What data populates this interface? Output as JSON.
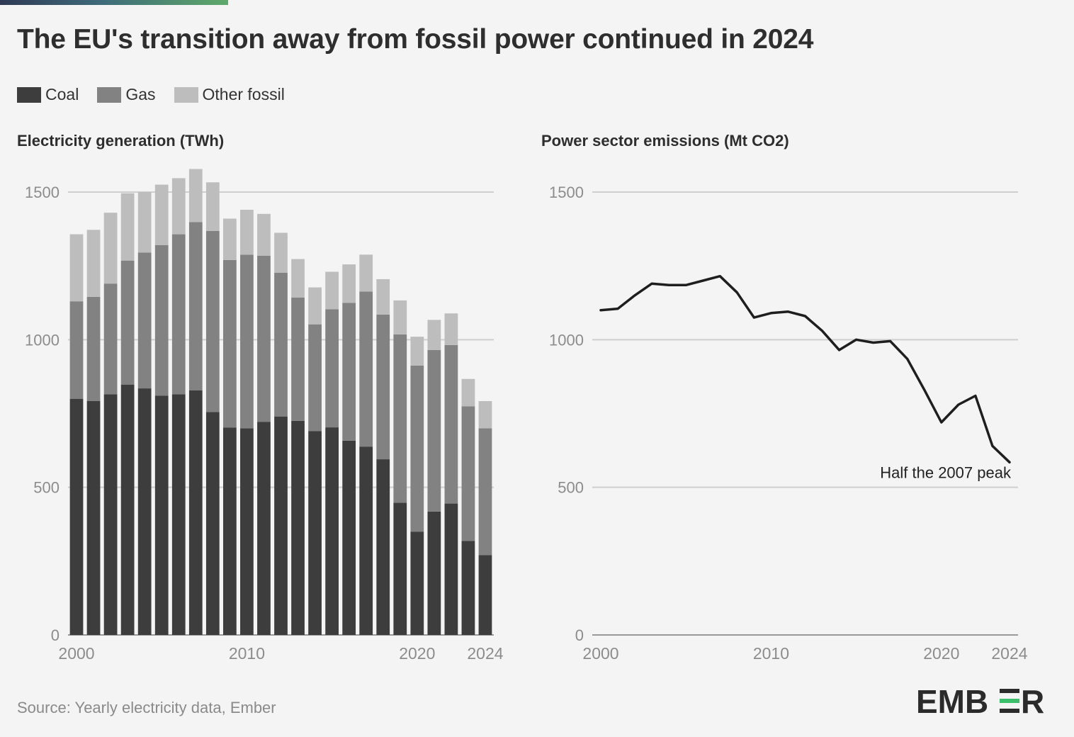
{
  "title": "The EU's transition away from fossil power continued in 2024",
  "legend": {
    "items": [
      {
        "label": "Coal",
        "color": "#3d3d3d"
      },
      {
        "label": "Gas",
        "color": "#828282"
      },
      {
        "label": "Other fossil",
        "color": "#bdbdbd"
      }
    ]
  },
  "source": "Source: Yearly electricity data, Ember",
  "logo": {
    "text": "EMBER",
    "accent": "#3cbf6b"
  },
  "colors": {
    "grid": "#cfcfcf",
    "axis_text": "#8c8c8c",
    "line": "#1e1e1e",
    "background": "#f4f4f4"
  },
  "chart_data": [
    {
      "type": "bar",
      "stacked": true,
      "title": "Electricity generation (TWh)",
      "x": [
        2000,
        2001,
        2002,
        2003,
        2004,
        2005,
        2006,
        2007,
        2008,
        2009,
        2010,
        2011,
        2012,
        2013,
        2014,
        2015,
        2016,
        2017,
        2018,
        2019,
        2020,
        2021,
        2022,
        2023,
        2024
      ],
      "x_tick_labels": [
        "2000",
        "2010",
        "2020",
        "2024"
      ],
      "y_ticks": [
        0,
        500,
        1000,
        1500
      ],
      "ylim": [
        0,
        1600
      ],
      "grid": true,
      "series": [
        {
          "name": "Coal",
          "values": [
            800,
            792,
            815,
            848,
            835,
            810,
            815,
            828,
            755,
            702,
            700,
            722,
            740,
            725,
            690,
            703,
            658,
            638,
            595,
            448,
            350,
            418,
            445,
            318,
            270
          ]
        },
        {
          "name": "Gas",
          "values": [
            330,
            353,
            375,
            420,
            460,
            510,
            542,
            570,
            613,
            568,
            588,
            562,
            487,
            418,
            362,
            400,
            467,
            525,
            490,
            570,
            562,
            547,
            537,
            456,
            430
          ]
        },
        {
          "name": "Other fossil",
          "values": [
            227,
            227,
            240,
            228,
            205,
            205,
            190,
            180,
            165,
            140,
            152,
            142,
            135,
            130,
            125,
            127,
            130,
            125,
            120,
            115,
            98,
            102,
            107,
            93,
            92
          ]
        }
      ]
    },
    {
      "type": "line",
      "title": "Power sector emissions (Mt CO2)",
      "x": [
        2000,
        2001,
        2002,
        2003,
        2004,
        2005,
        2006,
        2007,
        2008,
        2009,
        2010,
        2011,
        2012,
        2013,
        2014,
        2015,
        2016,
        2017,
        2018,
        2019,
        2020,
        2021,
        2022,
        2023,
        2024
      ],
      "x_tick_labels": [
        "2000",
        "2010",
        "2020",
        "2024"
      ],
      "y_ticks": [
        0,
        500,
        1000,
        1500
      ],
      "ylim": [
        0,
        1600
      ],
      "grid": true,
      "series": [
        {
          "values": [
            1100,
            1105,
            1150,
            1190,
            1185,
            1185,
            1200,
            1215,
            1160,
            1075,
            1090,
            1095,
            1080,
            1030,
            965,
            1000,
            990,
            995,
            935,
            830,
            720,
            780,
            810,
            640,
            585
          ]
        }
      ],
      "annotation": {
        "text": "Half the 2007 peak",
        "x": 2024,
        "y": 585
      }
    }
  ]
}
